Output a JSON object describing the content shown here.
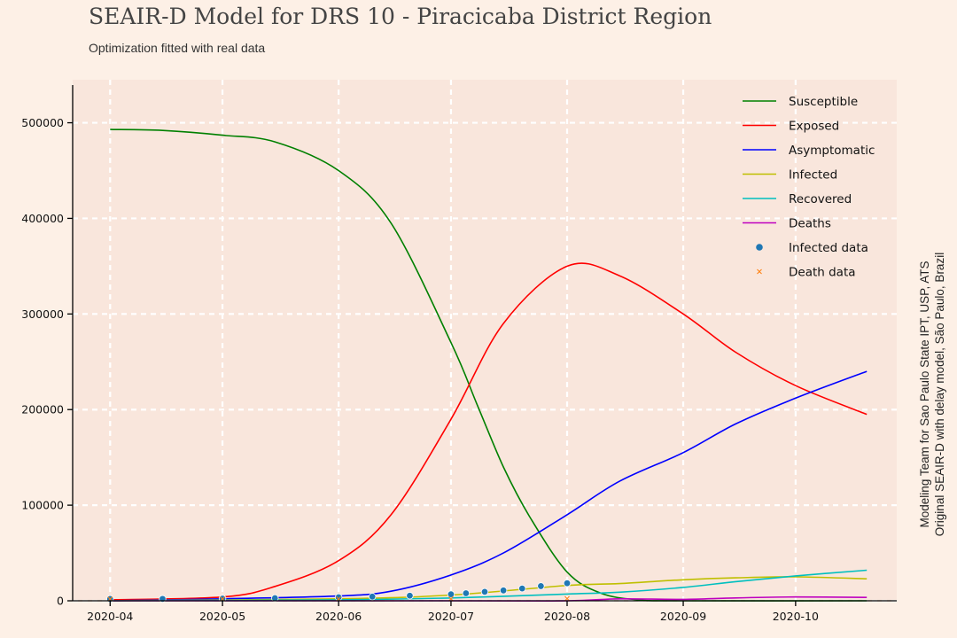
{
  "header": {
    "title": "SEAIR-D Model for DRS 10 - Piracicaba District Region",
    "subtitle": "Optimization fitted with real data"
  },
  "credit": {
    "line1": "Modeling Team for Sao Paulo State IPT, USP, ATS",
    "line2": "Original SEAIR-D with delay model, São Paulo, Brazil"
  },
  "chart_data": {
    "type": "line",
    "title": "SEAIR-D Model for DRS 10 - Piracicaba District Region",
    "subtitle": "Optimization fitted with real data",
    "xlabel": "",
    "ylabel": "",
    "x_type": "date",
    "xlim": [
      "2020-03-22",
      "2020-10-28"
    ],
    "ylim": [
      0,
      545000
    ],
    "x_ticks": [
      "2020-04-01",
      "2020-05-01",
      "2020-06-01",
      "2020-07-01",
      "2020-08-01",
      "2020-09-01",
      "2020-10-01"
    ],
    "x_tick_labels": [
      "2020-04",
      "2020-05",
      "2020-06",
      "2020-07",
      "2020-08",
      "2020-09",
      "2020-10"
    ],
    "y_ticks": [
      0,
      100000,
      200000,
      300000,
      400000,
      500000
    ],
    "y_tick_labels": [
      "0",
      "100000",
      "200000",
      "300000",
      "400000",
      "500000"
    ],
    "grid": true,
    "legend_position": "top-right",
    "background": "#f9e6dc",
    "series": [
      {
        "name": "Susceptible",
        "type": "line",
        "color": "#008000",
        "x": [
          "2020-04-01",
          "2020-04-15",
          "2020-05-01",
          "2020-05-15",
          "2020-06-01",
          "2020-06-15",
          "2020-07-01",
          "2020-07-08",
          "2020-07-15",
          "2020-07-22",
          "2020-08-01",
          "2020-08-10",
          "2020-08-20",
          "2020-09-01",
          "2020-10-20"
        ],
        "y": [
          493000,
          492000,
          487000,
          480000,
          450000,
          395000,
          270000,
          205000,
          140000,
          88000,
          30000,
          8000,
          1000,
          0,
          0
        ]
      },
      {
        "name": "Exposed",
        "type": "line",
        "color": "#ff0000",
        "x": [
          "2020-04-01",
          "2020-05-01",
          "2020-05-15",
          "2020-06-01",
          "2020-06-15",
          "2020-07-01",
          "2020-07-15",
          "2020-08-01",
          "2020-08-15",
          "2020-09-01",
          "2020-09-15",
          "2020-10-01",
          "2020-10-20"
        ],
        "y": [
          1000,
          4000,
          15000,
          42000,
          90000,
          190000,
          290000,
          350000,
          340000,
          300000,
          260000,
          225000,
          195000
        ]
      },
      {
        "name": "Asymptomatic",
        "type": "line",
        "color": "#0000ff",
        "x": [
          "2020-04-01",
          "2020-05-01",
          "2020-06-01",
          "2020-06-15",
          "2020-07-01",
          "2020-07-15",
          "2020-08-01",
          "2020-08-15",
          "2020-09-01",
          "2020-09-15",
          "2020-10-01",
          "2020-10-20"
        ],
        "y": [
          0,
          2000,
          5000,
          10000,
          27000,
          50000,
          90000,
          125000,
          155000,
          185000,
          212000,
          240000
        ]
      },
      {
        "name": "Infected",
        "type": "line",
        "color": "#bfbf00",
        "x": [
          "2020-04-01",
          "2020-06-01",
          "2020-07-01",
          "2020-08-01",
          "2020-08-15",
          "2020-09-01",
          "2020-09-15",
          "2020-10-01",
          "2020-10-20"
        ],
        "y": [
          0,
          2000,
          6000,
          16000,
          18000,
          22000,
          24000,
          25000,
          23000
        ]
      },
      {
        "name": "Recovered",
        "type": "line",
        "color": "#00bfbf",
        "x": [
          "2020-04-01",
          "2020-06-01",
          "2020-07-01",
          "2020-08-01",
          "2020-08-15",
          "2020-09-01",
          "2020-09-15",
          "2020-10-01",
          "2020-10-20"
        ],
        "y": [
          0,
          1000,
          3000,
          7000,
          9000,
          14000,
          20000,
          26000,
          32000
        ]
      },
      {
        "name": "Deaths",
        "type": "line",
        "color": "#bf00bf",
        "x": [
          "2020-04-01",
          "2020-07-01",
          "2020-08-01",
          "2020-08-15",
          "2020-09-01",
          "2020-09-15",
          "2020-10-01",
          "2020-10-20"
        ],
        "y": [
          0,
          0,
          0,
          2000,
          1500,
          3000,
          4000,
          3500
        ]
      },
      {
        "name": "Infected data",
        "type": "scatter",
        "color": "#1f77b4",
        "x": [
          "2020-04-01",
          "2020-04-15",
          "2020-05-01",
          "2020-05-15",
          "2020-06-01",
          "2020-06-10",
          "2020-06-20",
          "2020-07-01",
          "2020-07-05",
          "2020-07-10",
          "2020-07-15",
          "2020-07-20",
          "2020-07-25",
          "2020-08-01"
        ],
        "y": [
          50,
          150,
          400,
          900,
          1800,
          2500,
          3500,
          5000,
          6000,
          7500,
          9000,
          11000,
          13500,
          16500
        ]
      },
      {
        "name": "Death data",
        "type": "scatter",
        "color": "#ff7f0e",
        "x": [
          "2020-04-01",
          "2020-05-01",
          "2020-06-01",
          "2020-07-01",
          "2020-08-01"
        ],
        "y": [
          0,
          20,
          80,
          200,
          450
        ]
      }
    ]
  }
}
